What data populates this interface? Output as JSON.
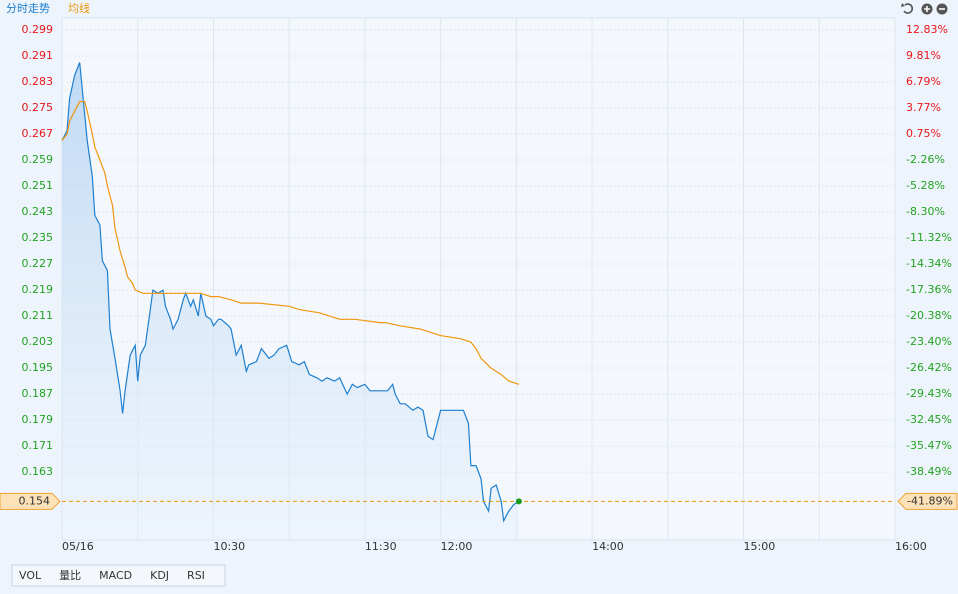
{
  "chart_data": {
    "type": "line",
    "legend": [
      "分时走势",
      "均线"
    ],
    "xlim": [
      0,
      330
    ],
    "xticks": [
      {
        "value": 0,
        "label": "05/16"
      },
      {
        "value": 30,
        "label": null
      },
      {
        "value": 60,
        "label": "10:30"
      },
      {
        "value": 90,
        "label": null
      },
      {
        "value": 120,
        "label": "11:30"
      },
      {
        "value": 150,
        "label": "12:00"
      },
      {
        "value": 180,
        "label": null
      },
      {
        "value": 210,
        "label": "14:00"
      },
      {
        "value": 240,
        "label": null
      },
      {
        "value": 270,
        "label": "15:00"
      },
      {
        "value": 300,
        "label": null
      },
      {
        "value": 330,
        "label": "16:00"
      }
    ],
    "ylim": [
      0.1421,
      0.3027
    ],
    "yticks": [
      0.299,
      0.291,
      0.283,
      0.275,
      0.267,
      0.259,
      0.251,
      0.243,
      0.235,
      0.227,
      0.219,
      0.211,
      0.203,
      0.195,
      0.187,
      0.179,
      0.171,
      0.163
    ],
    "y2lim": [
      -46.38,
      14.22
    ],
    "y2ticks": [
      {
        "value": 12.83,
        "label": "12.83%"
      },
      {
        "value": 9.81,
        "label": "9.81%"
      },
      {
        "value": 6.79,
        "label": "6.79%"
      },
      {
        "value": 3.77,
        "label": "3.77%"
      },
      {
        "value": 0.75,
        "label": "0.75%"
      },
      {
        "value": -2.26,
        "label": "-2.26%"
      },
      {
        "value": -5.28,
        "label": "-5.28%"
      },
      {
        "value": -8.3,
        "label": "-8.30%"
      },
      {
        "value": -11.32,
        "label": "-11.32%"
      },
      {
        "value": -14.34,
        "label": "-14.34%"
      },
      {
        "value": -17.36,
        "label": "-17.36%"
      },
      {
        "value": -20.38,
        "label": "-20.38%"
      },
      {
        "value": -23.4,
        "label": "-23.40%"
      },
      {
        "value": -26.42,
        "label": "-26.42%"
      },
      {
        "value": -29.43,
        "label": "-29.43%"
      },
      {
        "value": -32.45,
        "label": "-32.45%"
      },
      {
        "value": -35.47,
        "label": "-35.47%"
      },
      {
        "value": -38.49,
        "label": "-38.49%"
      }
    ],
    "up_color": "#e8171b",
    "down_color": "#22a322",
    "grid": true,
    "last_price": {
      "value": 0.154,
      "change": {
        "value": -41.89,
        "label": "-41.89%"
      }
    },
    "series": [
      {
        "name": "分时走势",
        "color": "#1e7fcf",
        "area": true,
        "x": [
          0,
          2,
          3,
          5,
          6,
          7,
          8,
          10,
          12,
          13,
          15,
          16,
          18,
          19,
          21,
          23,
          24,
          25,
          27,
          29,
          30,
          31,
          33,
          35,
          36,
          38,
          40,
          41,
          43,
          44,
          46,
          48,
          49,
          51,
          52,
          54,
          55,
          57,
          59,
          60,
          62,
          63,
          66,
          67,
          69,
          71,
          73,
          74,
          77,
          79,
          82,
          84,
          86,
          89,
          91,
          94,
          96,
          98,
          101,
          103,
          105,
          108,
          110,
          113,
          115,
          117,
          120,
          122,
          124,
          127,
          129,
          131,
          132,
          134,
          136,
          139,
          141,
          143,
          145,
          147,
          148,
          150,
          152,
          155,
          157,
          159,
          161,
          162,
          164,
          166,
          167,
          169,
          170,
          172,
          174,
          175,
          177,
          179,
          181
        ],
        "values": [
          0.265,
          0.268,
          0.278,
          0.285,
          0.287,
          0.289,
          0.281,
          0.265,
          0.254,
          0.242,
          0.239,
          0.228,
          0.225,
          0.207,
          0.198,
          0.188,
          0.181,
          0.188,
          0.199,
          0.202,
          0.191,
          0.199,
          0.202,
          0.213,
          0.219,
          0.218,
          0.219,
          0.214,
          0.21,
          0.207,
          0.21,
          0.216,
          0.218,
          0.214,
          0.216,
          0.211,
          0.218,
          0.211,
          0.21,
          0.208,
          0.21,
          0.21,
          0.208,
          0.207,
          0.199,
          0.202,
          0.194,
          0.196,
          0.197,
          0.201,
          0.198,
          0.199,
          0.201,
          0.202,
          0.197,
          0.196,
          0.197,
          0.193,
          0.192,
          0.191,
          0.192,
          0.191,
          0.192,
          0.187,
          0.19,
          0.189,
          0.19,
          0.188,
          0.188,
          0.188,
          0.188,
          0.19,
          0.187,
          0.184,
          0.184,
          0.182,
          0.183,
          0.182,
          0.174,
          0.173,
          0.176,
          0.182,
          0.182,
          0.182,
          0.182,
          0.182,
          0.178,
          0.165,
          0.165,
          0.161,
          0.154,
          0.151,
          0.158,
          0.159,
          0.154,
          0.148,
          0.151,
          0.153,
          0.154
        ]
      },
      {
        "name": "均线",
        "color": "#f0960f",
        "area": false,
        "x": [
          0,
          2,
          3,
          5,
          7,
          9,
          10,
          12,
          13,
          15,
          17,
          18,
          20,
          21,
          23,
          25,
          26,
          28,
          29,
          32,
          35,
          55,
          59,
          62,
          67,
          71,
          78,
          90,
          94,
          102,
          106,
          110,
          116,
          126,
          128,
          134,
          142,
          146,
          150,
          158,
          162,
          164,
          166,
          170,
          174,
          177,
          181
        ],
        "values": [
          0.265,
          0.267,
          0.271,
          0.274,
          0.277,
          0.277,
          0.274,
          0.267,
          0.263,
          0.259,
          0.255,
          0.251,
          0.245,
          0.238,
          0.231,
          0.226,
          0.223,
          0.221,
          0.219,
          0.218,
          0.218,
          0.218,
          0.217,
          0.217,
          0.216,
          0.215,
          0.215,
          0.214,
          0.213,
          0.212,
          0.211,
          0.21,
          0.21,
          0.209,
          0.209,
          0.208,
          0.207,
          0.206,
          0.205,
          0.204,
          0.203,
          0.201,
          0.198,
          0.195,
          0.193,
          0.191,
          0.19
        ]
      }
    ]
  },
  "tabs": [
    "VOL",
    "量比",
    "MACD",
    "KDJ",
    "RSI"
  ]
}
